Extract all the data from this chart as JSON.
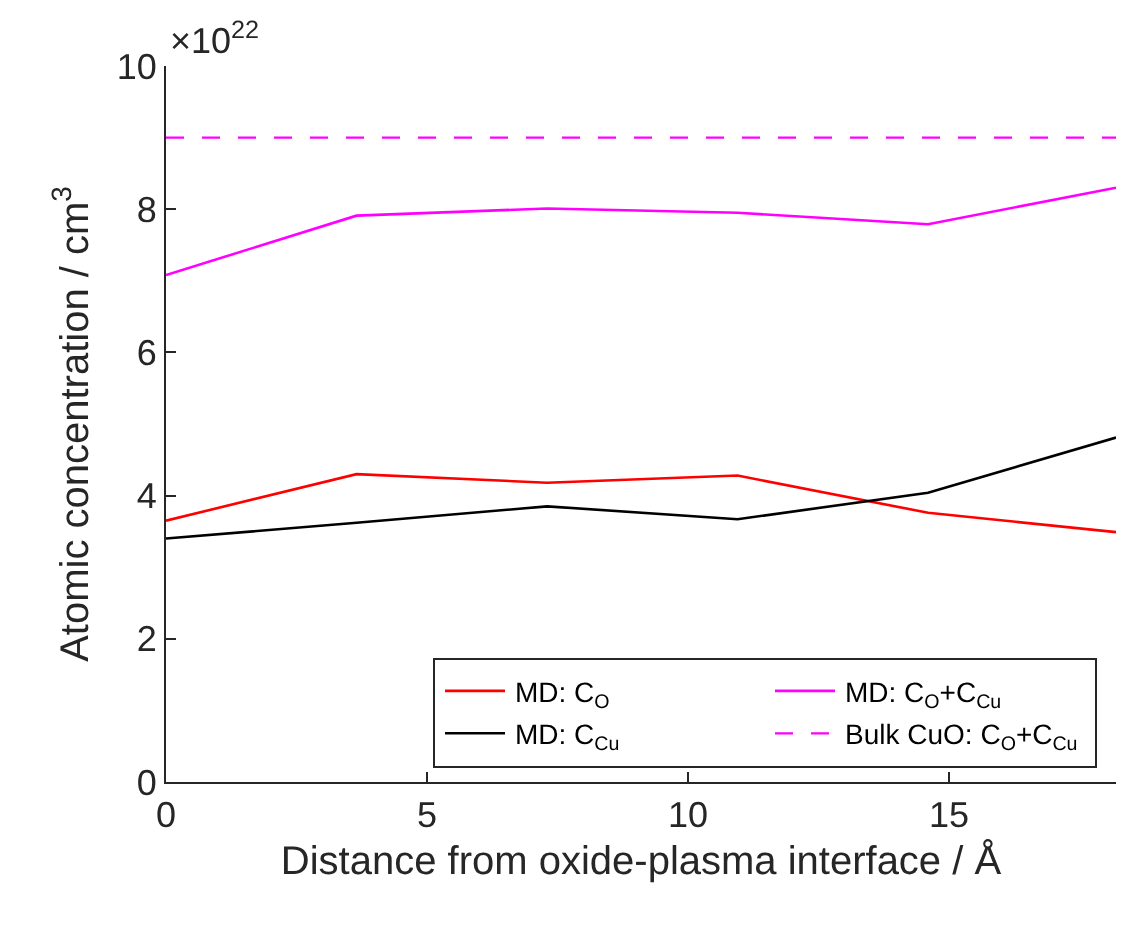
{
  "chart_data": {
    "type": "line",
    "xlabel": "Distance from oxide-plasma interface / Å",
    "ylabel": "Atomic concentration / cm$^{3}$",
    "annotations": [
      "×10$^{22}$"
    ],
    "x": [
      0,
      3.65,
      7.3,
      10.95,
      14.6,
      18.2
    ],
    "series": [
      {
        "name": "MD: C$_{O}$",
        "color": "#ff0000",
        "values": [
          3.65,
          4.3,
          4.18,
          4.28,
          3.76,
          3.49
        ]
      },
      {
        "name": "MD: C$_{O}$+C$_{Cu}$",
        "color": "#ff00ff",
        "values": [
          7.08,
          7.91,
          8.01,
          7.95,
          7.79,
          8.3
        ]
      },
      {
        "name": "MD: C$_{Cu}$",
        "color": "#000000",
        "values": [
          3.4,
          3.62,
          3.85,
          3.67,
          4.04,
          4.81
        ]
      }
    ],
    "ref_lines": [
      {
        "axis": "y",
        "value": 9,
        "label": "Bulk CuO: C$_{O}$+C$_{Cu}$",
        "color": "#ff00ff",
        "line_style": "dashed"
      }
    ],
    "xlim": [
      0,
      18.2
    ],
    "xticks": [
      0,
      5,
      10,
      15
    ],
    "ylim": [
      0,
      10
    ],
    "yticks": [
      0,
      2,
      4,
      6,
      8,
      10
    ],
    "legend": "bottom right",
    "line_style": "solid",
    "marker": "none"
  }
}
